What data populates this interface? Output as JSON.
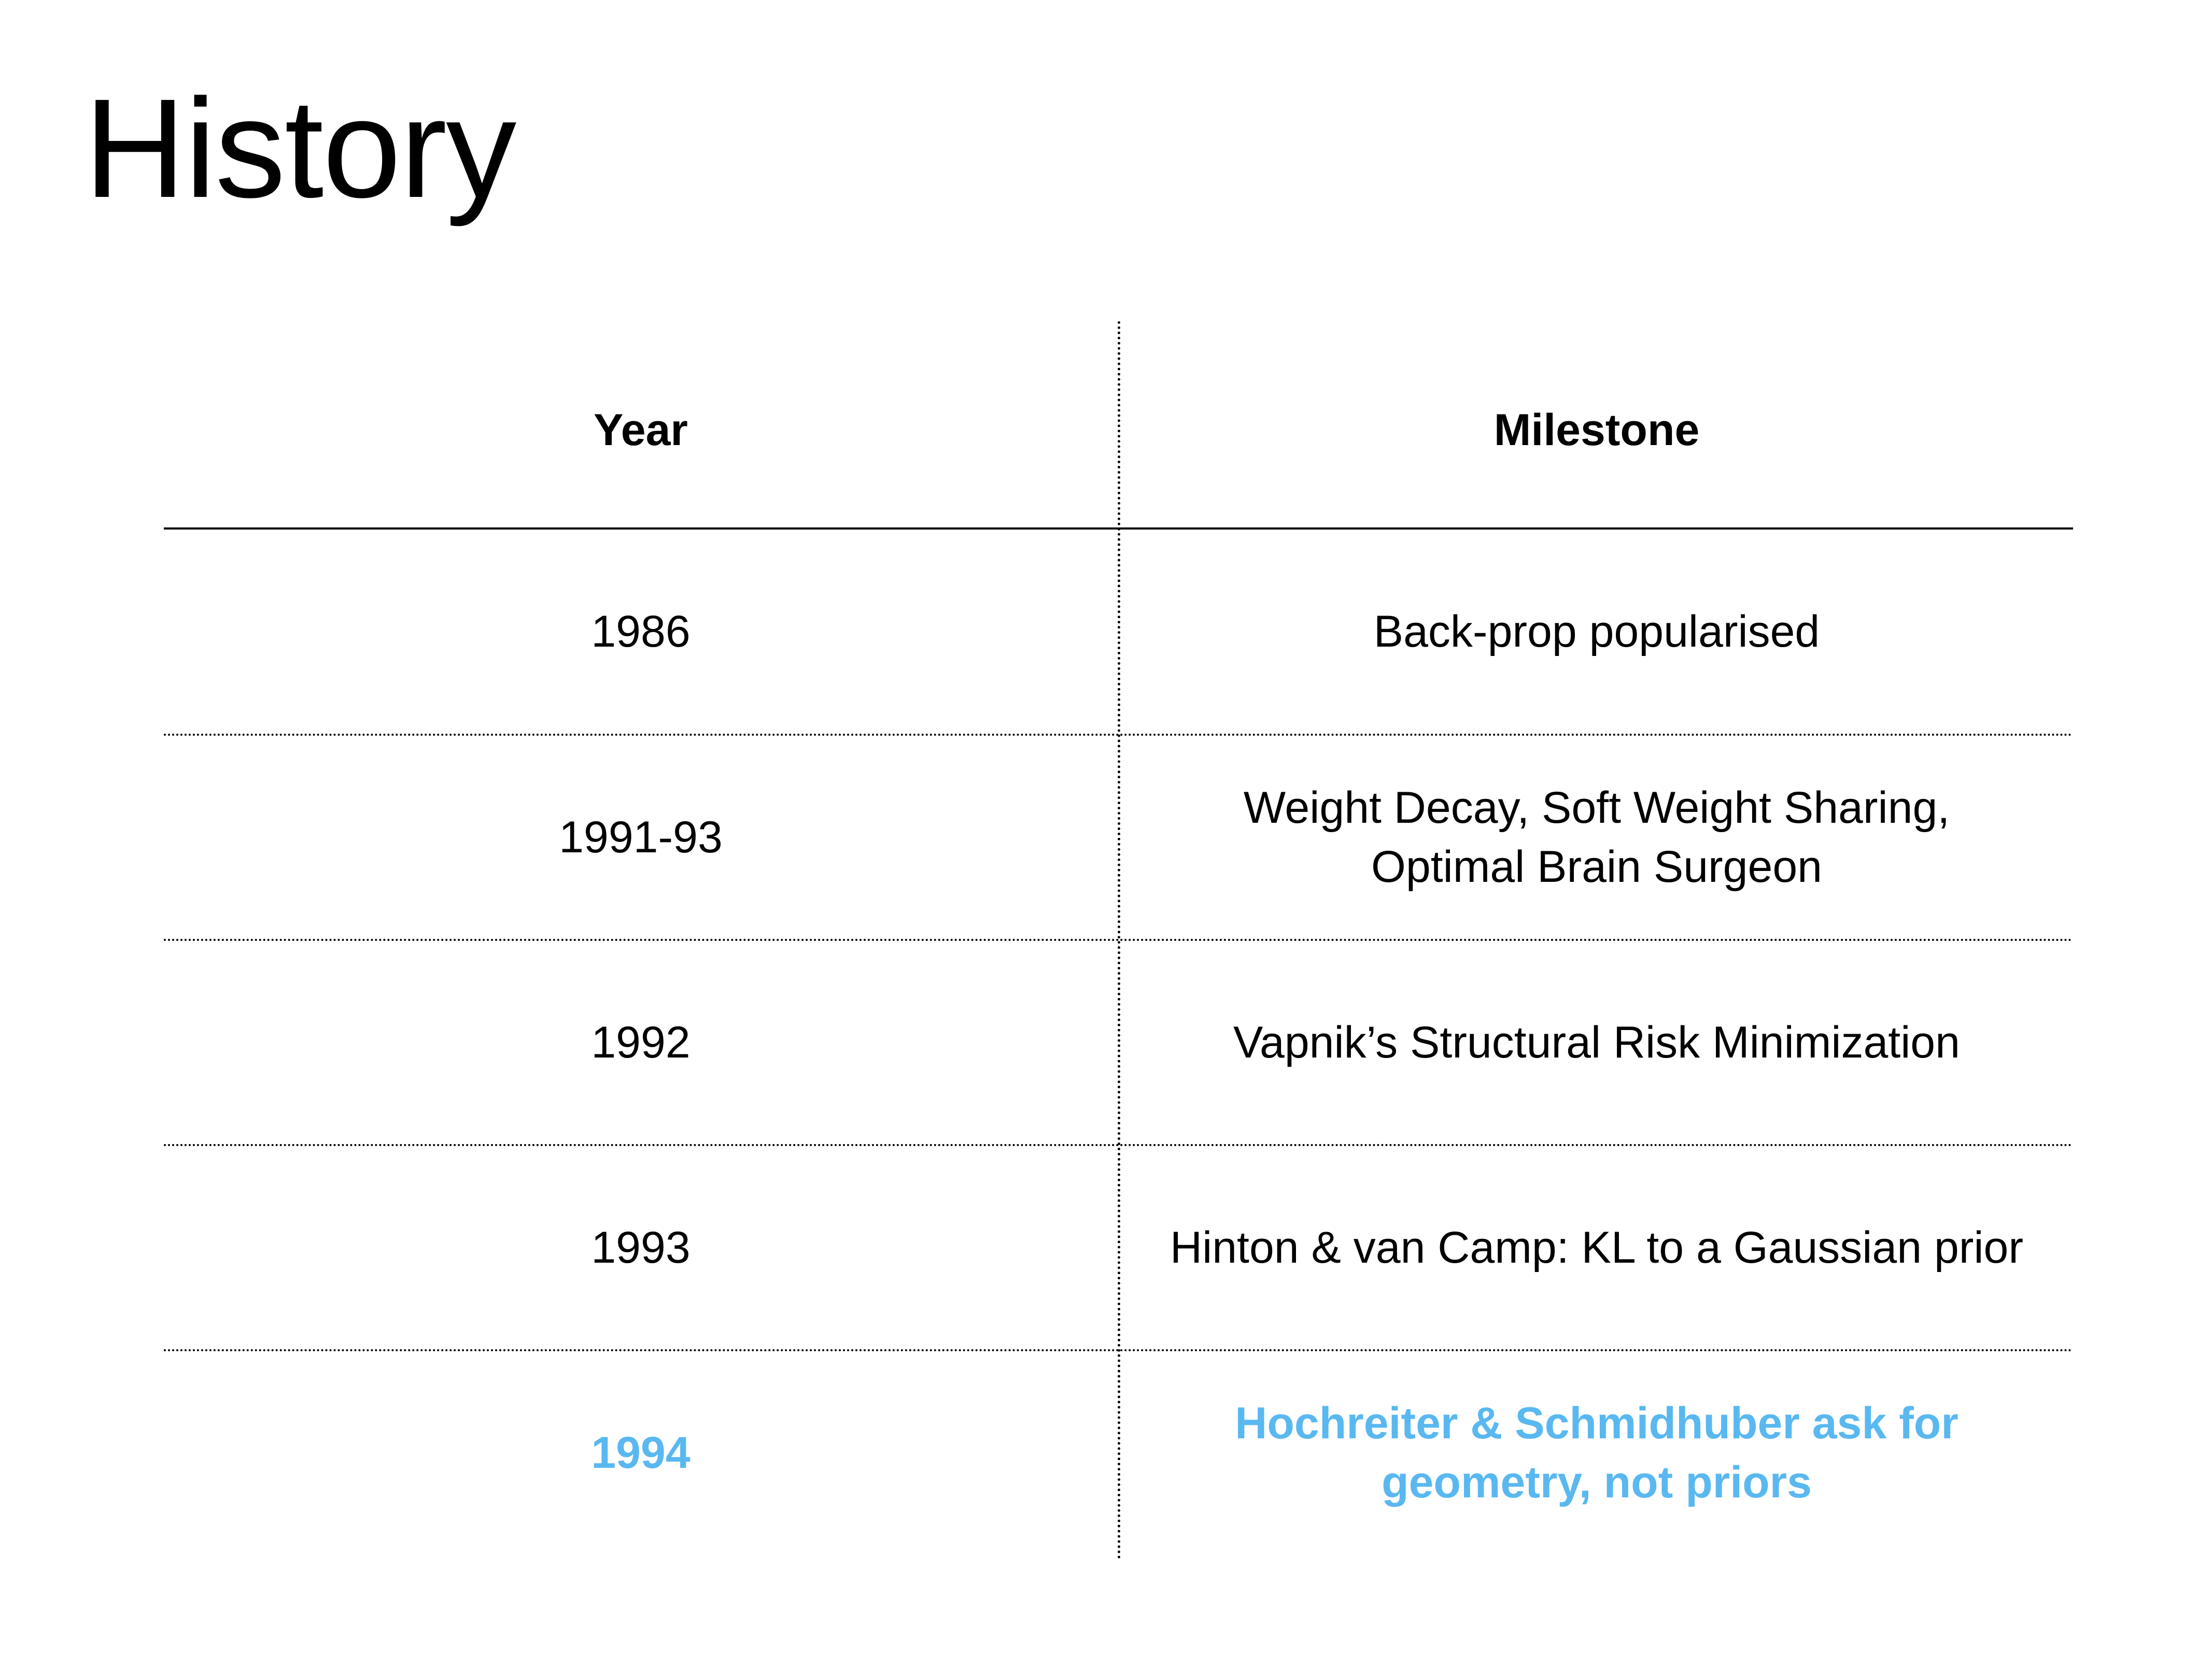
{
  "slide": {
    "title": "History"
  },
  "table": {
    "headers": {
      "year": "Year",
      "milestone": "Milestone"
    },
    "rows": [
      {
        "year": "1986",
        "milestone": "Back-prop popularised",
        "highlighted": false
      },
      {
        "year": "1991-93",
        "milestone": "Weight Decay, Soft Weight Sharing,\nOptimal Brain Surgeon",
        "highlighted": false
      },
      {
        "year": "1992",
        "milestone": "Vapnik’s Structural Risk Minimization",
        "highlighted": false
      },
      {
        "year": "1993",
        "milestone": "Hinton & van Camp: KL to a Gaussian prior",
        "highlighted": false
      },
      {
        "year": "1994",
        "milestone": "Hochreiter & Schmidhuber ask for\ngeometry, not priors",
        "highlighted": true
      }
    ]
  },
  "colors": {
    "text": "#000000",
    "highlight": "#5ab8f0",
    "background": "#ffffff"
  }
}
